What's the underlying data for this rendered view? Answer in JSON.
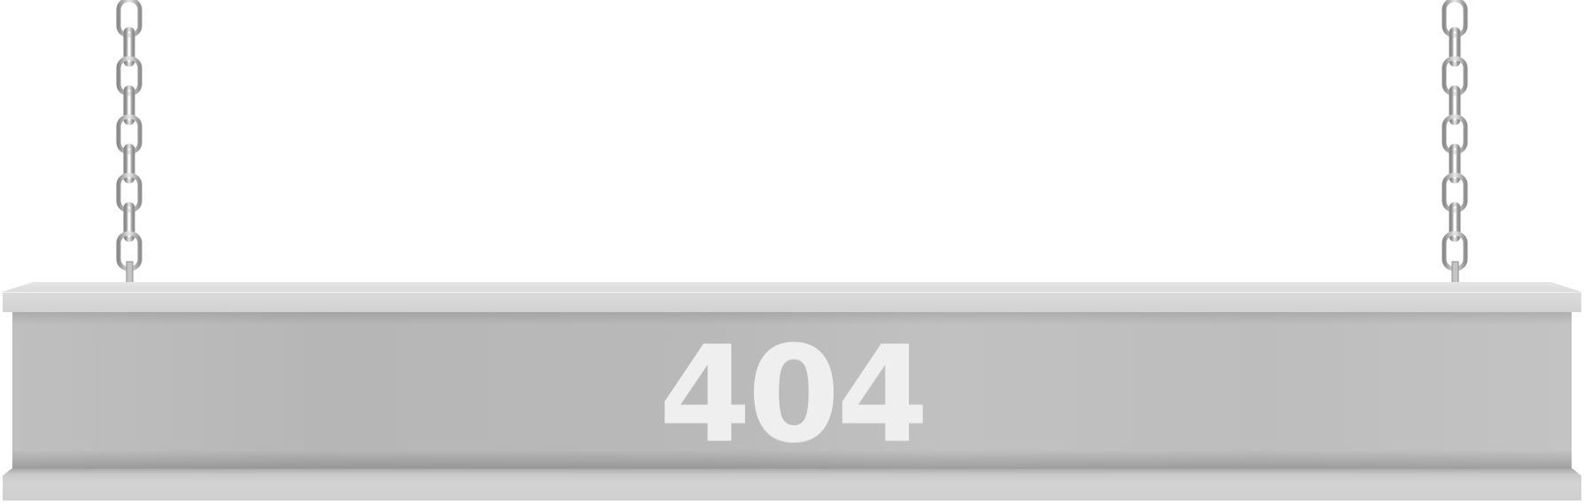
{
  "sign": {
    "error_code": "404"
  },
  "colors": {
    "background": "#ffffff",
    "beam": "#bdbdbd",
    "text": "#efefef"
  },
  "icons": [
    "chain-icon"
  ]
}
